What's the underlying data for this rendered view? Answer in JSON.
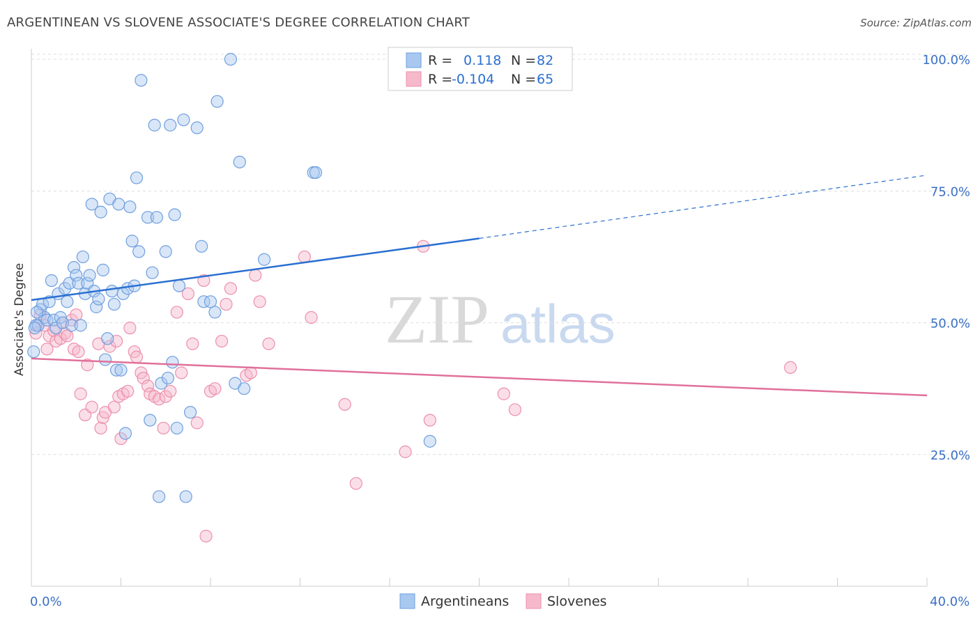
{
  "header": {
    "title": "ARGENTINEAN VS SLOVENE ASSOCIATE'S DEGREE CORRELATION CHART",
    "source": "Source: ZipAtlas.com"
  },
  "watermark": {
    "zip": "ZIP",
    "atlas": "atlas"
  },
  "legend_top": [
    {
      "r_label": "R =",
      "r_value": "0.118",
      "n_label": "N =",
      "n_value": "82"
    },
    {
      "r_label": "R =",
      "r_value": "-0.104",
      "n_label": "N =",
      "n_value": "65"
    }
  ],
  "legend_bottom": [
    "Argentineans",
    "Slovenes"
  ],
  "colors": {
    "blue_fill": "#a9c8f0",
    "blue_stroke": "#6f9fde",
    "blue_line": "#2a6fd1",
    "pink_fill": "#f6b9cc",
    "pink_stroke": "#ec8fac",
    "pink_line": "#e0709a",
    "label_blue": "#3a6fc4",
    "grid": "#dddddd"
  },
  "chart_data": {
    "type": "scatter",
    "title": "ARGENTINEAN VS SLOVENE ASSOCIATE'S DEGREE CORRELATION CHART",
    "xlabel": "",
    "ylabel": "Associate's Degree",
    "xlim": [
      0,
      40
    ],
    "ylim": [
      0,
      102
    ],
    "x_tick_labels": [
      "0.0%",
      "40.0%"
    ],
    "y_tick_labels": [
      "100.0%",
      "75.0%",
      "50.0%",
      "25.0%"
    ],
    "y_ticks": [
      100,
      75,
      50,
      25
    ],
    "grid": true,
    "legend_position": "top-center",
    "series": [
      {
        "name": "Argentineans",
        "r": 0.118,
        "n": 82,
        "trend": {
          "x0": 0,
          "y0": 54.3,
          "x1": 20,
          "y1": 66.0,
          "dashed_to_x": 40,
          "dashed_to_y": 78.0
        },
        "points": [
          [
            0.1,
            44.5
          ],
          [
            0.2,
            49.5
          ],
          [
            0.3,
            49.5
          ],
          [
            0.4,
            52.5
          ],
          [
            0.5,
            53.5
          ],
          [
            0.6,
            51
          ],
          [
            0.7,
            50.5
          ],
          [
            0.8,
            54
          ],
          [
            0.9,
            58
          ],
          [
            1.0,
            50.5
          ],
          [
            1.1,
            49
          ],
          [
            1.2,
            55.5
          ],
          [
            1.3,
            51
          ],
          [
            1.4,
            50
          ],
          [
            1.5,
            56.5
          ],
          [
            1.6,
            54
          ],
          [
            1.7,
            57.5
          ],
          [
            1.8,
            49.5
          ],
          [
            1.9,
            60.5
          ],
          [
            2.0,
            59
          ],
          [
            2.1,
            57.5
          ],
          [
            2.2,
            49.5
          ],
          [
            2.3,
            62.5
          ],
          [
            2.4,
            55.5
          ],
          [
            2.5,
            57.5
          ],
          [
            2.6,
            59
          ],
          [
            2.7,
            72.5
          ],
          [
            2.8,
            56
          ],
          [
            2.9,
            53
          ],
          [
            3.0,
            54.5
          ],
          [
            3.1,
            71
          ],
          [
            3.2,
            60
          ],
          [
            3.3,
            43
          ],
          [
            3.4,
            47
          ],
          [
            3.5,
            73.5
          ],
          [
            3.6,
            56
          ],
          [
            3.7,
            53.5
          ],
          [
            3.8,
            41
          ],
          [
            3.9,
            72.5
          ],
          [
            4.0,
            41
          ],
          [
            4.1,
            55.5
          ],
          [
            4.2,
            29
          ],
          [
            4.3,
            56.5
          ],
          [
            4.4,
            72
          ],
          [
            4.5,
            65.5
          ],
          [
            4.6,
            57
          ],
          [
            4.7,
            77.5
          ],
          [
            4.8,
            63.5
          ],
          [
            4.9,
            96
          ],
          [
            5.2,
            70
          ],
          [
            5.3,
            31.5
          ],
          [
            5.4,
            59.5
          ],
          [
            5.5,
            87.5
          ],
          [
            5.6,
            70
          ],
          [
            5.7,
            17
          ],
          [
            5.8,
            38.5
          ],
          [
            6.0,
            63.5
          ],
          [
            6.1,
            39.5
          ],
          [
            6.2,
            87.5
          ],
          [
            6.3,
            42.5
          ],
          [
            6.4,
            70.5
          ],
          [
            6.5,
            30
          ],
          [
            6.6,
            57
          ],
          [
            6.8,
            88.5
          ],
          [
            6.9,
            17
          ],
          [
            7.1,
            33
          ],
          [
            7.4,
            87
          ],
          [
            7.6,
            64.5
          ],
          [
            7.7,
            54
          ],
          [
            8.0,
            54
          ],
          [
            8.2,
            52
          ],
          [
            8.3,
            92
          ],
          [
            8.9,
            100
          ],
          [
            9.1,
            38.5
          ],
          [
            9.3,
            80.5
          ],
          [
            9.5,
            37.5
          ],
          [
            10.4,
            62
          ],
          [
            12.6,
            78.5
          ],
          [
            12.7,
            78.5
          ],
          [
            17.8,
            27.5
          ],
          [
            0.15,
            49
          ],
          [
            0.25,
            52
          ]
        ]
      },
      {
        "name": "Slovenes",
        "r": -0.104,
        "n": 65,
        "trend": {
          "x0": 0,
          "y0": 43.2,
          "x1": 40,
          "y1": 36.2
        },
        "points": [
          [
            0.2,
            48
          ],
          [
            0.3,
            49.5
          ],
          [
            0.4,
            51.5
          ],
          [
            0.6,
            49.5
          ],
          [
            0.7,
            45
          ],
          [
            0.8,
            47.5
          ],
          [
            1.0,
            48.5
          ],
          [
            1.1,
            46.5
          ],
          [
            1.3,
            47
          ],
          [
            1.4,
            50
          ],
          [
            1.5,
            48
          ],
          [
            1.6,
            47.5
          ],
          [
            1.8,
            50.5
          ],
          [
            1.9,
            45
          ],
          [
            2.0,
            51.5
          ],
          [
            2.1,
            44.5
          ],
          [
            2.2,
            36.5
          ],
          [
            2.4,
            32.5
          ],
          [
            2.5,
            42
          ],
          [
            2.7,
            34
          ],
          [
            3.0,
            46
          ],
          [
            3.1,
            30
          ],
          [
            3.2,
            32
          ],
          [
            3.3,
            33
          ],
          [
            3.5,
            45.5
          ],
          [
            3.7,
            34
          ],
          [
            3.8,
            46.5
          ],
          [
            3.9,
            36
          ],
          [
            4.0,
            28
          ],
          [
            4.1,
            36.5
          ],
          [
            4.3,
            37
          ],
          [
            4.4,
            49
          ],
          [
            4.6,
            44.5
          ],
          [
            4.7,
            43.5
          ],
          [
            4.9,
            40.5
          ],
          [
            5.0,
            39.5
          ],
          [
            5.2,
            38
          ],
          [
            5.3,
            36.5
          ],
          [
            5.5,
            36
          ],
          [
            5.7,
            35.5
          ],
          [
            5.9,
            30
          ],
          [
            6.0,
            36
          ],
          [
            6.2,
            37
          ],
          [
            6.5,
            52
          ],
          [
            6.7,
            40.5
          ],
          [
            7.0,
            55.5
          ],
          [
            7.2,
            46
          ],
          [
            7.4,
            31
          ],
          [
            7.7,
            58
          ],
          [
            7.8,
            9.5
          ],
          [
            8.0,
            37
          ],
          [
            8.2,
            37.5
          ],
          [
            8.5,
            46.5
          ],
          [
            8.7,
            53.5
          ],
          [
            8.9,
            56.5
          ],
          [
            9.6,
            40
          ],
          [
            10.0,
            59
          ],
          [
            10.2,
            54
          ],
          [
            10.6,
            46
          ],
          [
            12.2,
            62.5
          ],
          [
            12.5,
            51
          ],
          [
            14.0,
            34.5
          ],
          [
            14.5,
            19.5
          ],
          [
            16.7,
            25.5
          ],
          [
            17.5,
            64.5
          ]
        ]
      }
    ],
    "extra_points_slovenes": [
      [
        17.8,
        31.5
      ],
      [
        21.1,
        36.5
      ],
      [
        21.6,
        33.5
      ],
      [
        33.9,
        41.5
      ],
      [
        9.8,
        40.5
      ]
    ]
  }
}
